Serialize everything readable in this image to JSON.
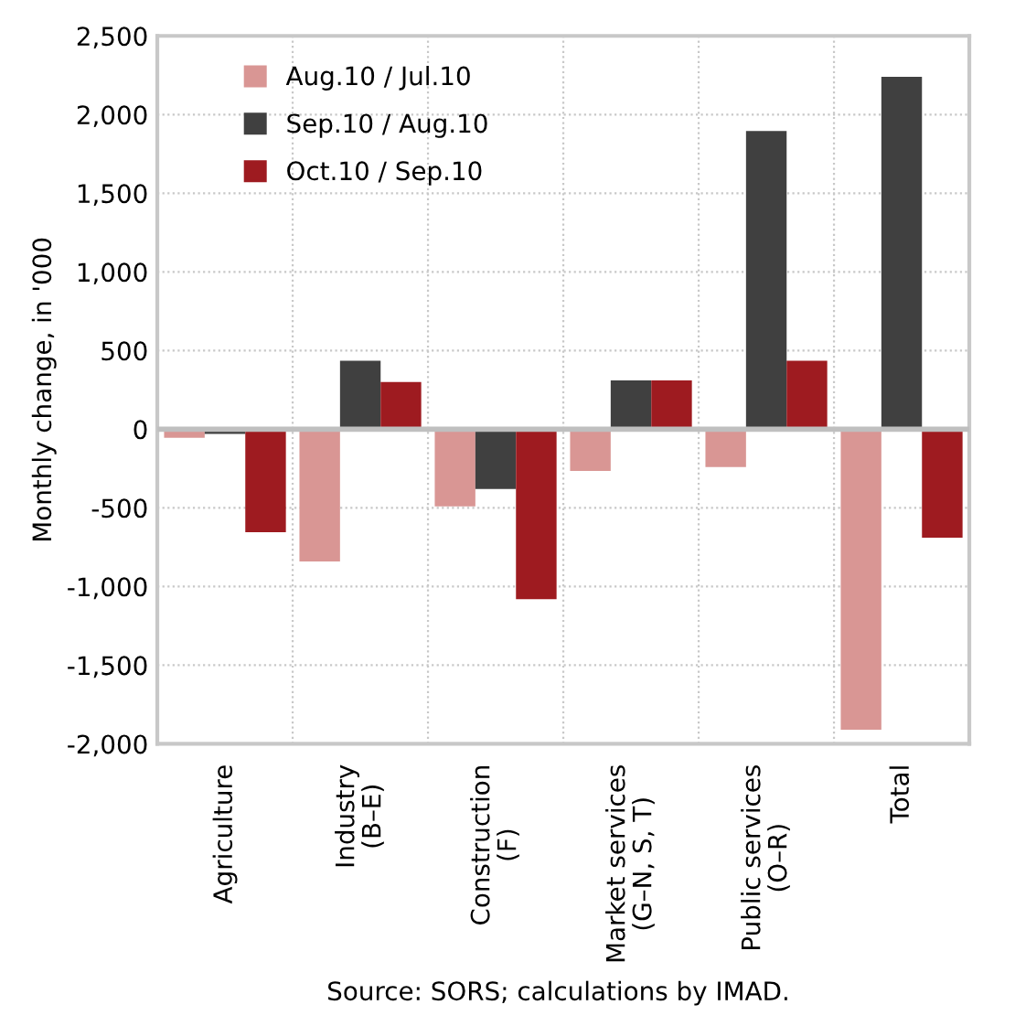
{
  "chart_data": {
    "type": "bar",
    "ylabel": "Monthly change, in '000",
    "categories": [
      "Agriculture",
      "Industry\n(B–E)",
      "Construction\n(F)",
      "Market services\n(G–N, S, T)",
      "Public services\n(O–R)",
      "Total"
    ],
    "series": [
      {
        "name": "Aug.10 / Jul.10",
        "color": "#d99694",
        "values": [
          -55,
          -840,
          -490,
          -265,
          -240,
          -1910
        ]
      },
      {
        "name": "Sep.10 / Aug.10",
        "color": "#404040",
        "values": [
          -30,
          435,
          -380,
          310,
          1895,
          2240
        ]
      },
      {
        "name": "Oct.10 / Sep.10",
        "color": "#9e1b20",
        "values": [
          -655,
          300,
          -1080,
          310,
          435,
          -690
        ]
      }
    ],
    "ylim": [
      -2000,
      2500
    ],
    "yticks": [
      {
        "value": -2000,
        "label": "-2,000"
      },
      {
        "value": -1500,
        "label": "-1,500"
      },
      {
        "value": -1000,
        "label": "-1,000"
      },
      {
        "value": -500,
        "label": "-500"
      },
      0,
      500,
      {
        "value": 1000,
        "label": "1,000"
      },
      {
        "value": 1500,
        "label": "1,500"
      },
      {
        "value": 2000,
        "label": "2,000"
      },
      {
        "value": 2500,
        "label": "2,500"
      }
    ],
    "grid": true,
    "legend": "top left",
    "annotations": [
      "Source: SORS; calculations by IMAD."
    ]
  }
}
